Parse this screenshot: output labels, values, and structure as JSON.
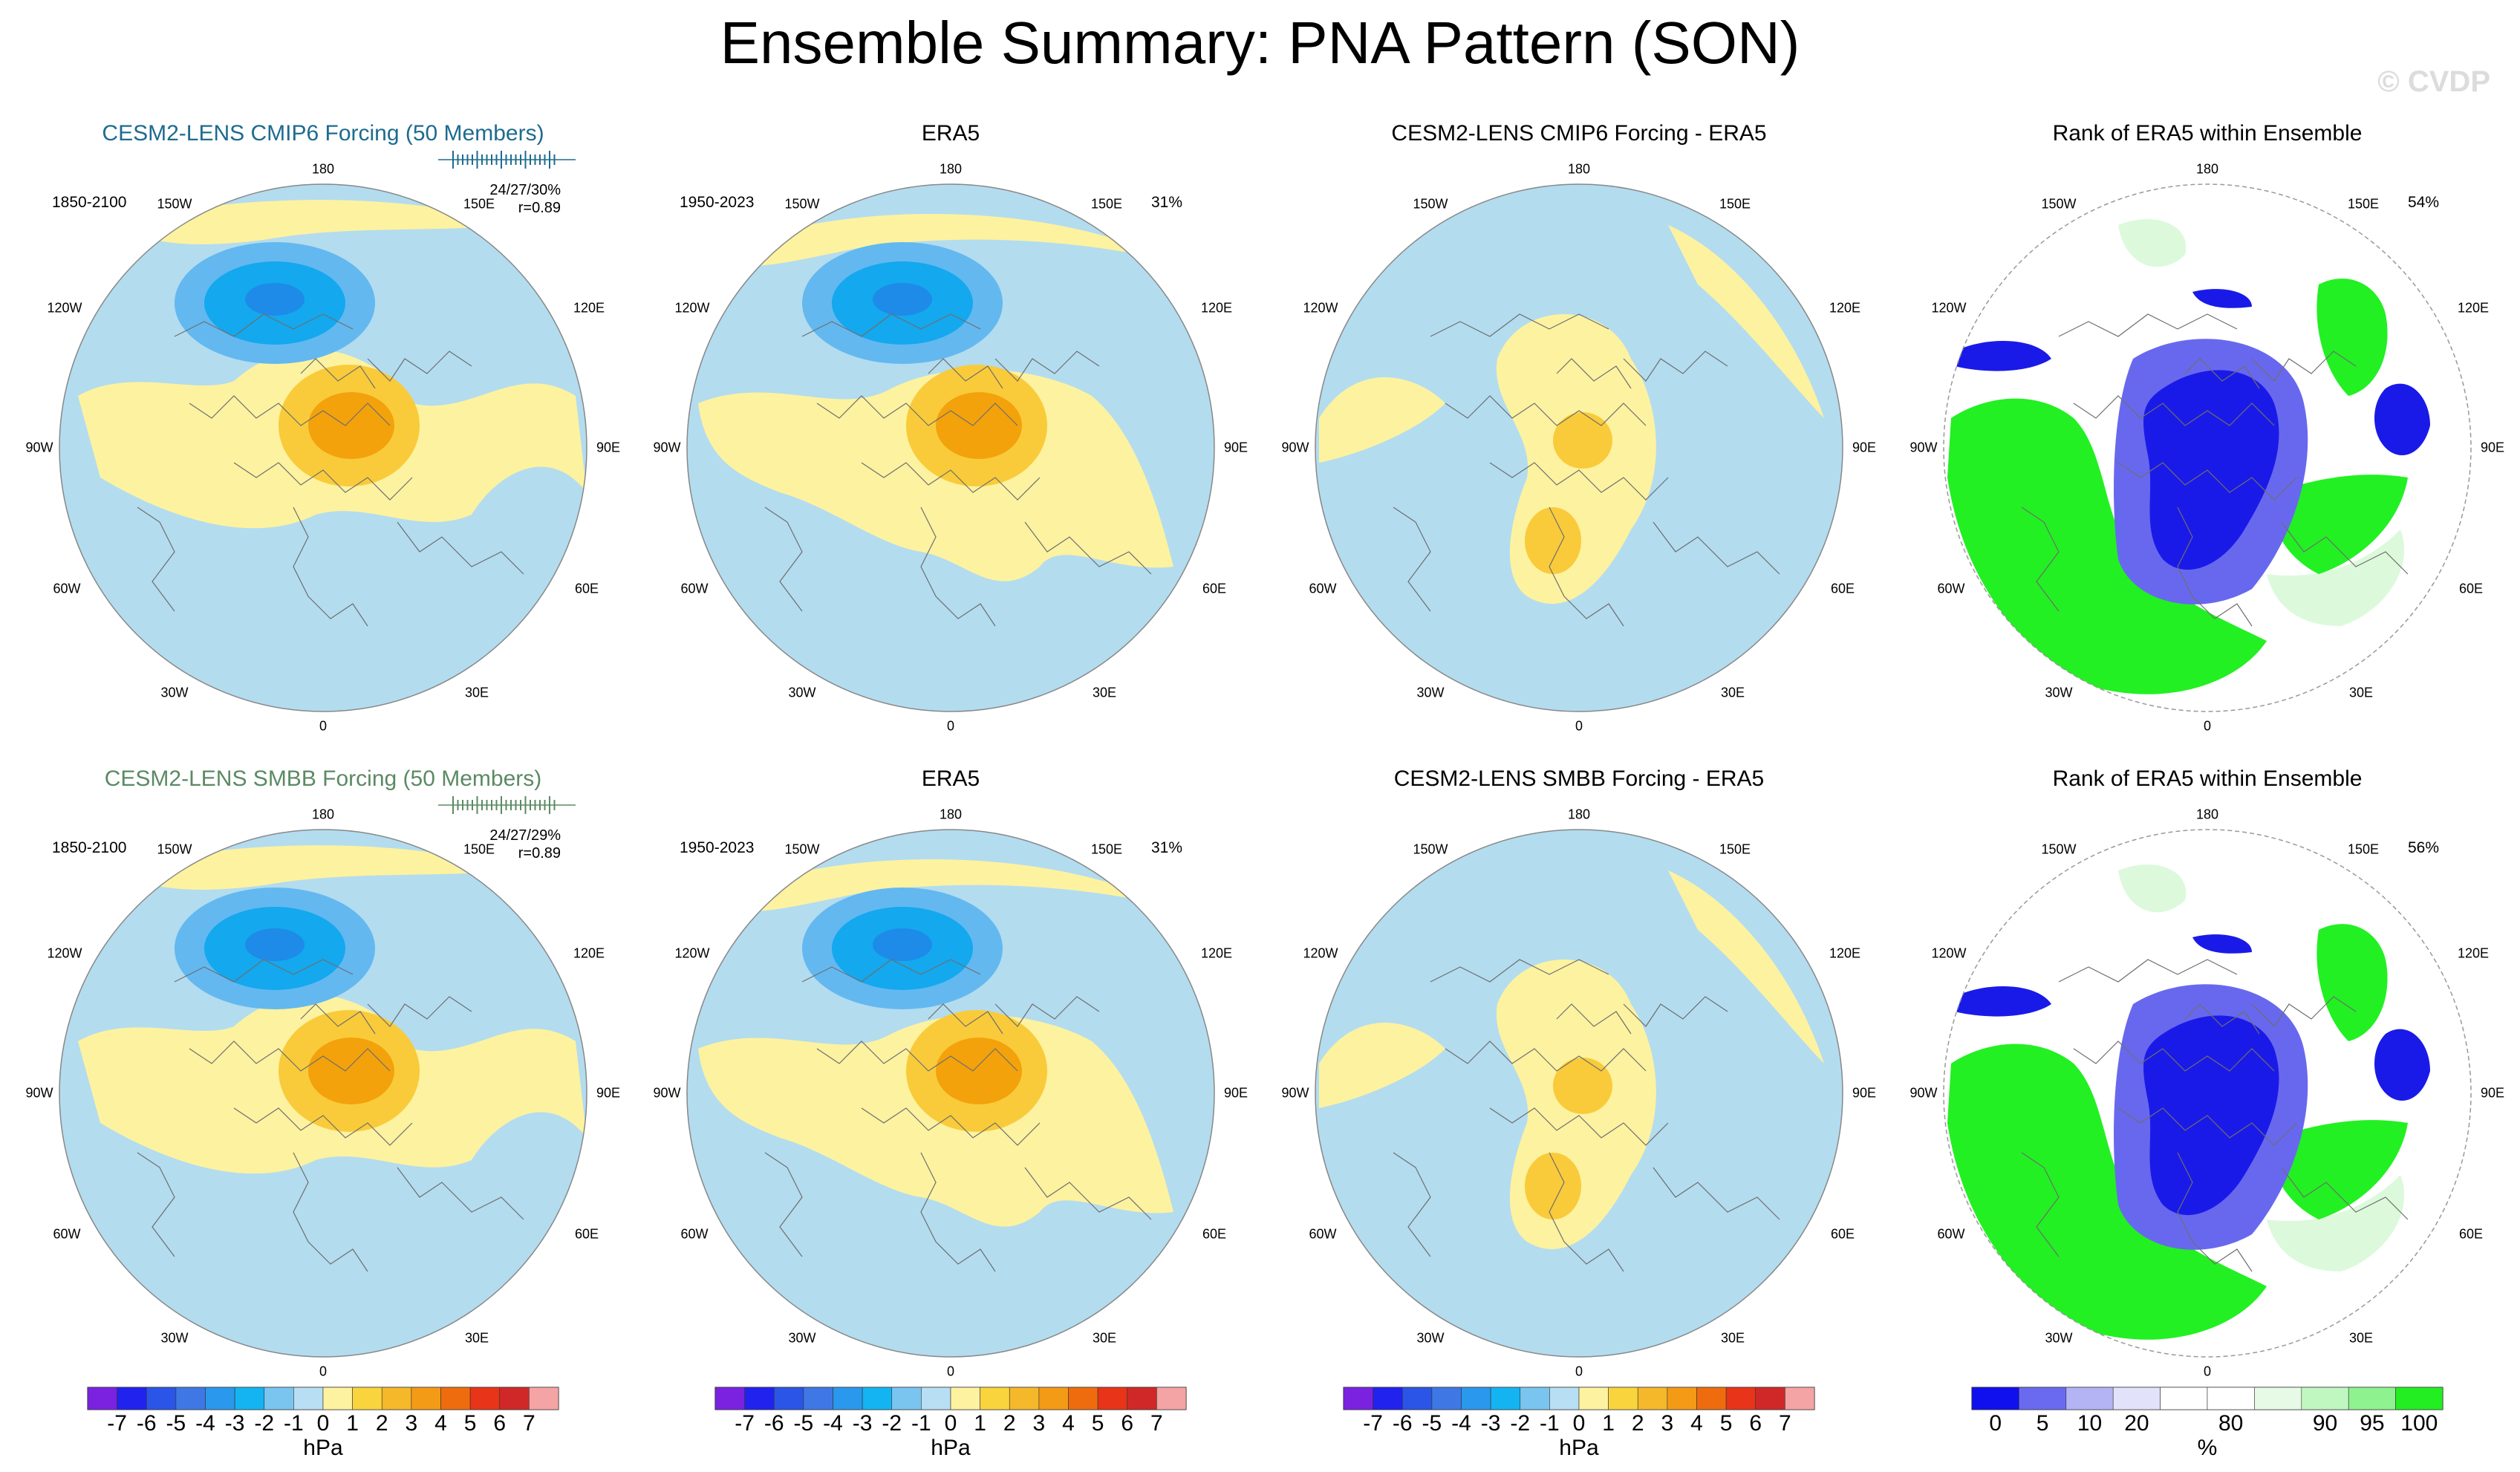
{
  "title": "Ensemble Summary: PNA Pattern (SON)",
  "watermark": "© CVDP",
  "colors": {
    "neg_fill": "#b3dcef",
    "pos_fill": "#fdf2a0",
    "blue1": "#63b8f0",
    "blue2": "#14a8ee",
    "blue3": "#1e8be8",
    "orange1": "#f9cb3a",
    "orange2": "#f3a20c",
    "green_strong": "#22f022",
    "green_mid": "#93f593",
    "green_light": "#dcf9dc",
    "rank_blue": "#1a1ae8",
    "rank_blue_mid": "#6868ee",
    "rank_blue_light": "#c8c8f6"
  },
  "chart_data": [
    {
      "type": "heatmap",
      "name": "model1-pattern",
      "title": "CESM2-LENS CMIP6 Forcing (50 Members)",
      "years": "1850-2100",
      "stat_pct": "24/27/30%",
      "stat_r": "r=0.89",
      "units": "hPa"
    },
    {
      "type": "heatmap",
      "name": "obs1-pattern",
      "title": "ERA5",
      "years": "1950-2023",
      "pct": "31%",
      "units": "hPa"
    },
    {
      "type": "heatmap",
      "name": "diff1-pattern",
      "title": "CESM2-LENS CMIP6 Forcing - ERA5",
      "units": "hPa"
    },
    {
      "type": "heatmap",
      "name": "rank1-pattern",
      "title": "Rank of ERA5 within Ensemble",
      "pct": "54%",
      "units": "%"
    },
    {
      "type": "heatmap",
      "name": "model2-pattern",
      "title": "CESM2-LENS SMBB Forcing (50 Members)",
      "years": "1850-2100",
      "stat_pct": "24/27/29%",
      "stat_r": "r=0.89",
      "units": "hPa"
    },
    {
      "type": "heatmap",
      "name": "obs2-pattern",
      "title": "ERA5",
      "years": "1950-2023",
      "pct": "31%",
      "units": "hPa"
    },
    {
      "type": "heatmap",
      "name": "diff2-pattern",
      "title": "CESM2-LENS SMBB Forcing - ERA5",
      "units": "hPa"
    },
    {
      "type": "heatmap",
      "name": "rank2-pattern",
      "title": "Rank of ERA5 within Ensemble",
      "pct": "56%",
      "units": "%"
    }
  ],
  "lon_labels": {
    "top": "180",
    "top_left": "150W",
    "top_right": "150E",
    "upper_left": "120W",
    "upper_right": "120E",
    "left": "90W",
    "right": "90E",
    "lower_left": "60W",
    "lower_right": "60E",
    "bottom_left": "30W",
    "bottom_right": "30E",
    "bottom": "0"
  },
  "colorbar_hpa": {
    "labels": [
      "-7",
      "-6",
      "-5",
      "-4",
      "-3",
      "-2",
      "-1",
      "0",
      "1",
      "2",
      "3",
      "4",
      "5",
      "6",
      "7"
    ],
    "colors": [
      "#7a22e0",
      "#2222ee",
      "#2a55e6",
      "#3f78e5",
      "#2a98ec",
      "#14b4f2",
      "#7ac5ef",
      "#b8def3",
      "#fdf2a0",
      "#f9d43c",
      "#f5b82a",
      "#f39a16",
      "#ef6c0e",
      "#e83418",
      "#d02828",
      "#f4a4a4"
    ],
    "unit": "hPa"
  },
  "colorbar_rank": {
    "labels": [
      "0",
      "5",
      "10",
      "20",
      "80",
      "90",
      "95",
      "100"
    ],
    "colors": [
      "#1010ee",
      "#6a6af0",
      "#b4b4f4",
      "#e2e2fa",
      "#ffffff",
      "#ffffff",
      "#e6fae6",
      "#c0f6c0",
      "#8ef28e",
      "#22ee22"
    ],
    "unit": "%"
  }
}
